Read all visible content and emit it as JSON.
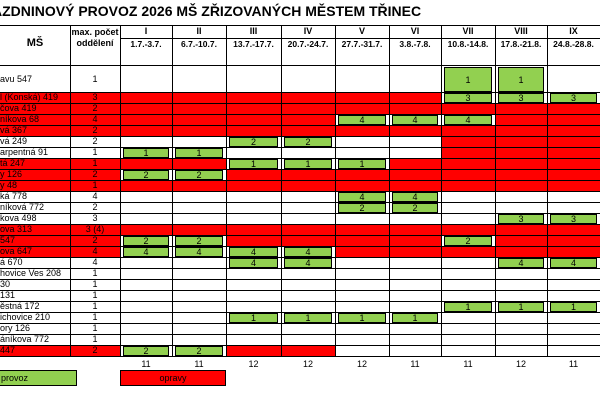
{
  "title": "ÁZDNINOVÝ PROVOZ 2026  MŠ ZŘIZOVANÝCH MĚSTEM TŘINEC",
  "header": {
    "ms_label": "MŠ",
    "max_label": "max. počet oddělení",
    "weeks": [
      {
        "roman": "I",
        "dates": "1.7.-3.7."
      },
      {
        "roman": "II",
        "dates": "6.7.-10.7."
      },
      {
        "roman": "III",
        "dates": "13.7.-17.7."
      },
      {
        "roman": "IV",
        "dates": "20.7.-24.7."
      },
      {
        "roman": "V",
        "dates": "27.7.-31.7."
      },
      {
        "roman": "VI",
        "dates": "3.8.-7.8."
      },
      {
        "roman": "VII",
        "dates": "10.8.-14.8."
      },
      {
        "roman": "VIII",
        "dates": "17.8.-21.8."
      },
      {
        "roman": "IX",
        "dates": "24.8.-28.8."
      }
    ]
  },
  "rows": [
    {
      "name": "avu 547",
      "max": "1",
      "row_red": false,
      "tall": true,
      "cells": [
        [
          "",
          ""
        ],
        [
          "",
          ""
        ],
        [
          "",
          ""
        ],
        [
          "",
          ""
        ],
        [
          "",
          ""
        ],
        [
          "",
          ""
        ],
        [
          "g",
          "1"
        ],
        [
          "g",
          "1"
        ],
        [
          "",
          ""
        ]
      ]
    },
    {
      "name": "l (Konská) 419",
      "max": "3",
      "row_red": true,
      "cells": [
        [
          "r",
          ""
        ],
        [
          "r",
          ""
        ],
        [
          "r",
          ""
        ],
        [
          "r",
          ""
        ],
        [
          "r",
          ""
        ],
        [
          "r",
          ""
        ],
        [
          "g",
          "3"
        ],
        [
          "g",
          "3"
        ],
        [
          "g",
          "3"
        ]
      ]
    },
    {
      "name": "čova 419",
      "max": "2",
      "row_red": true,
      "cells": [
        [
          "r",
          ""
        ],
        [
          "r",
          ""
        ],
        [
          "r",
          ""
        ],
        [
          "r",
          ""
        ],
        [
          "r",
          ""
        ],
        [
          "r",
          ""
        ],
        [
          "r",
          ""
        ],
        [
          "r",
          ""
        ],
        [
          "r",
          ""
        ]
      ]
    },
    {
      "name": "níkova 68",
      "max": "4",
      "row_red": true,
      "cells": [
        [
          "r",
          ""
        ],
        [
          "r",
          ""
        ],
        [
          "r",
          ""
        ],
        [
          "r",
          ""
        ],
        [
          "g",
          "4"
        ],
        [
          "g",
          "4"
        ],
        [
          "g",
          "4"
        ],
        [
          "r",
          ""
        ],
        [
          "r",
          ""
        ]
      ]
    },
    {
      "name": "vá 367",
      "max": "2",
      "row_red": true,
      "cells": [
        [
          "r",
          ""
        ],
        [
          "r",
          ""
        ],
        [
          "r",
          ""
        ],
        [
          "r",
          ""
        ],
        [
          "r",
          ""
        ],
        [
          "r",
          ""
        ],
        [
          "r",
          ""
        ],
        [
          "r",
          ""
        ],
        [
          "r",
          ""
        ]
      ]
    },
    {
      "name": "vá 249",
      "max": "2",
      "row_red": false,
      "cells": [
        [
          "",
          ""
        ],
        [
          "",
          ""
        ],
        [
          "g",
          "2"
        ],
        [
          "g",
          "2"
        ],
        [
          "",
          ""
        ],
        [
          "",
          ""
        ],
        [
          "r",
          ""
        ],
        [
          "r",
          ""
        ],
        [
          "r",
          ""
        ]
      ]
    },
    {
      "name": "arpentná 91",
      "max": "1",
      "row_red": false,
      "cells": [
        [
          "g",
          "1"
        ],
        [
          "g",
          "1"
        ],
        [
          "",
          ""
        ],
        [
          "",
          ""
        ],
        [
          "",
          ""
        ],
        [
          "",
          ""
        ],
        [
          "r",
          ""
        ],
        [
          "r",
          ""
        ],
        [
          "r",
          ""
        ]
      ]
    },
    {
      "name": "tá 247",
      "max": "1",
      "row_red": true,
      "cells": [
        [
          "r",
          ""
        ],
        [
          "r",
          ""
        ],
        [
          "g",
          "1"
        ],
        [
          "g",
          "1"
        ],
        [
          "g",
          "1"
        ],
        [
          "r",
          ""
        ],
        [
          "r",
          ""
        ],
        [
          "r",
          ""
        ],
        [
          "r",
          ""
        ]
      ]
    },
    {
      "name": "y 126",
      "max": "2",
      "row_red": true,
      "cells": [
        [
          "g",
          "2"
        ],
        [
          "g",
          "2"
        ],
        [
          "r",
          ""
        ],
        [
          "r",
          ""
        ],
        [
          "r",
          ""
        ],
        [
          "r",
          ""
        ],
        [
          "r",
          ""
        ],
        [
          "r",
          ""
        ],
        [
          "r",
          ""
        ]
      ]
    },
    {
      "name": "y 48",
      "max": "1",
      "row_red": true,
      "cells": [
        [
          "r",
          ""
        ],
        [
          "r",
          ""
        ],
        [
          "r",
          ""
        ],
        [
          "r",
          ""
        ],
        [
          "r",
          ""
        ],
        [
          "r",
          ""
        ],
        [
          "r",
          ""
        ],
        [
          "r",
          ""
        ],
        [
          "r",
          ""
        ]
      ]
    },
    {
      "name": "ká 778",
      "max": "4",
      "row_red": false,
      "cells": [
        [
          "",
          ""
        ],
        [
          "",
          ""
        ],
        [
          "",
          ""
        ],
        [
          "",
          ""
        ],
        [
          "g",
          "4"
        ],
        [
          "g",
          "4"
        ],
        [
          "",
          ""
        ],
        [
          "",
          ""
        ],
        [
          "",
          ""
        ]
      ]
    },
    {
      "name": "níková 772",
      "max": "2",
      "row_red": false,
      "cells": [
        [
          "",
          ""
        ],
        [
          "",
          ""
        ],
        [
          "",
          ""
        ],
        [
          "",
          ""
        ],
        [
          "g",
          "2"
        ],
        [
          "g",
          "2"
        ],
        [
          "",
          ""
        ],
        [
          "",
          ""
        ],
        [
          "",
          ""
        ]
      ]
    },
    {
      "name": "kova 498",
      "max": "3",
      "row_red": false,
      "cells": [
        [
          "",
          ""
        ],
        [
          "",
          ""
        ],
        [
          "",
          ""
        ],
        [
          "",
          ""
        ],
        [
          "",
          ""
        ],
        [
          "",
          ""
        ],
        [
          "",
          ""
        ],
        [
          "g",
          "3"
        ],
        [
          "g",
          "3"
        ]
      ]
    },
    {
      "name": "ova 313",
      "max": "3 (4)",
      "row_red": true,
      "cells": [
        [
          "r",
          ""
        ],
        [
          "r",
          ""
        ],
        [
          "r",
          ""
        ],
        [
          "r",
          ""
        ],
        [
          "r",
          ""
        ],
        [
          "r",
          ""
        ],
        [
          "r",
          ""
        ],
        [
          "r",
          ""
        ],
        [
          "r",
          ""
        ]
      ]
    },
    {
      "name": "547",
      "max": "2",
      "row_red": true,
      "cells": [
        [
          "g",
          "2"
        ],
        [
          "g",
          "2"
        ],
        [
          "r",
          ""
        ],
        [
          "r",
          ""
        ],
        [
          "r",
          ""
        ],
        [
          "r",
          ""
        ],
        [
          "g",
          "2"
        ],
        [
          "r",
          ""
        ],
        [
          "r",
          ""
        ]
      ]
    },
    {
      "name": "ova 647",
      "max": "4",
      "row_red": true,
      "cells": [
        [
          "g",
          "4"
        ],
        [
          "g",
          "4"
        ],
        [
          "g",
          "4"
        ],
        [
          "g",
          "4"
        ],
        [
          "r",
          ""
        ],
        [
          "r",
          ""
        ],
        [
          "r",
          ""
        ],
        [
          "r",
          ""
        ],
        [
          "r",
          ""
        ]
      ]
    },
    {
      "name": "á 670",
      "max": "4",
      "row_red": false,
      "cells": [
        [
          "",
          ""
        ],
        [
          "",
          ""
        ],
        [
          "g",
          "4"
        ],
        [
          "g",
          "4"
        ],
        [
          "",
          ""
        ],
        [
          "",
          ""
        ],
        [
          "",
          ""
        ],
        [
          "g",
          "4"
        ],
        [
          "g",
          "4"
        ]
      ]
    },
    {
      "name": "hovice Ves 208",
      "max": "1",
      "row_red": false,
      "cells": [
        [
          "",
          ""
        ],
        [
          "",
          ""
        ],
        [
          "",
          ""
        ],
        [
          "",
          ""
        ],
        [
          "",
          ""
        ],
        [
          "",
          ""
        ],
        [
          "",
          ""
        ],
        [
          "",
          ""
        ],
        [
          "",
          ""
        ]
      ]
    },
    {
      "name": "30",
      "max": "1",
      "row_red": false,
      "cells": [
        [
          "",
          ""
        ],
        [
          "",
          ""
        ],
        [
          "",
          ""
        ],
        [
          "",
          ""
        ],
        [
          "",
          ""
        ],
        [
          "",
          ""
        ],
        [
          "",
          ""
        ],
        [
          "",
          ""
        ],
        [
          "",
          ""
        ]
      ]
    },
    {
      "name": "131",
      "max": "1",
      "row_red": false,
      "cells": [
        [
          "",
          ""
        ],
        [
          "",
          ""
        ],
        [
          "",
          ""
        ],
        [
          "",
          ""
        ],
        [
          "",
          ""
        ],
        [
          "",
          ""
        ],
        [
          "",
          ""
        ],
        [
          "",
          ""
        ],
        [
          "",
          ""
        ]
      ]
    },
    {
      "name": "ěstná 172",
      "max": "1",
      "row_red": false,
      "cells": [
        [
          "",
          ""
        ],
        [
          "",
          ""
        ],
        [
          "",
          ""
        ],
        [
          "",
          ""
        ],
        [
          "",
          ""
        ],
        [
          "",
          ""
        ],
        [
          "g",
          "1"
        ],
        [
          "g",
          "1"
        ],
        [
          "g",
          "1"
        ]
      ]
    },
    {
      "name": "ichovice 210",
      "max": "1",
      "row_red": false,
      "cells": [
        [
          "",
          ""
        ],
        [
          "",
          ""
        ],
        [
          "g",
          "1"
        ],
        [
          "g",
          "1"
        ],
        [
          "g",
          "1"
        ],
        [
          "g",
          "1"
        ],
        [
          "",
          ""
        ],
        [
          "",
          ""
        ],
        [
          "",
          ""
        ]
      ]
    },
    {
      "name": "ory 126",
      "max": "1",
      "row_red": false,
      "cells": [
        [
          "",
          ""
        ],
        [
          "",
          ""
        ],
        [
          "",
          ""
        ],
        [
          "",
          ""
        ],
        [
          "",
          ""
        ],
        [
          "",
          ""
        ],
        [
          "",
          ""
        ],
        [
          "",
          ""
        ],
        [
          "",
          ""
        ]
      ]
    },
    {
      "name": "áníkova 772",
      "max": "1",
      "row_red": false,
      "cells": [
        [
          "",
          ""
        ],
        [
          "",
          ""
        ],
        [
          "",
          ""
        ],
        [
          "",
          ""
        ],
        [
          "",
          ""
        ],
        [
          "",
          ""
        ],
        [
          "",
          ""
        ],
        [
          "",
          ""
        ],
        [
          "",
          ""
        ]
      ]
    },
    {
      "name": "447",
      "max": "2",
      "row_red": true,
      "cells": [
        [
          "g",
          "2"
        ],
        [
          "g",
          "2"
        ],
        [
          "r",
          ""
        ],
        [
          "r",
          ""
        ],
        [
          "",
          ""
        ],
        [
          "",
          ""
        ],
        [
          "",
          ""
        ],
        [
          "",
          ""
        ],
        [
          "",
          ""
        ]
      ]
    }
  ],
  "totals": [
    "11",
    "11",
    "12",
    "12",
    "12",
    "11",
    "11",
    "12",
    "11"
  ],
  "legend": {
    "provoz": "provoz",
    "opravy": "opravy"
  },
  "colors": {
    "red": "#ff0000",
    "green": "#92d050"
  }
}
